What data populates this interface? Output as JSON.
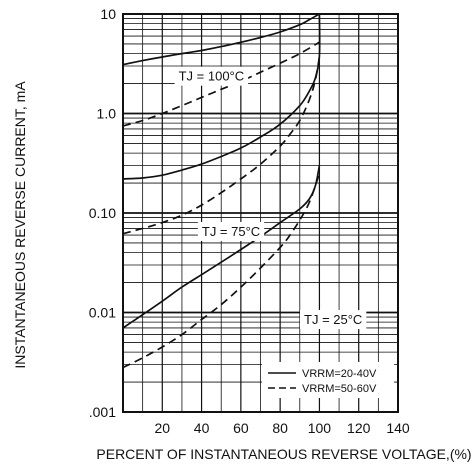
{
  "chart_data": {
    "type": "line",
    "xlabel": "PERCENT OF INSTANTANEOUS REVERSE VOLTAGE,(%)",
    "ylabel": "INSTANTANEOUS REVERSE CURRENT, mA",
    "xlim": [
      0,
      140
    ],
    "ylim": [
      0.001,
      10
    ],
    "yscale": "log",
    "grid": true,
    "x_ticks": [
      "20",
      "40",
      "60",
      "80",
      "100",
      "120",
      "140"
    ],
    "y_ticks": [
      "10",
      "1.0",
      "0.10",
      "0.01",
      ".001"
    ],
    "y_tick_values": [
      10,
      1,
      0.1,
      0.01,
      0.001
    ],
    "legend_position": "bottom-right",
    "legend": [
      {
        "label": "VRRM=20-40V",
        "style": "solid"
      },
      {
        "label": "VRRM=50-60V",
        "style": "dashed"
      }
    ],
    "annotations": [
      {
        "text": "TJ = 100°C",
        "x": 45,
        "y": 2.4
      },
      {
        "text": "TJ = 75°C",
        "x": 55,
        "y": 0.066
      },
      {
        "text": "TJ = 25°C",
        "x": 107,
        "y": 0.0086
      }
    ],
    "series": [
      {
        "style": "solid",
        "group": "TJ = 100°C",
        "x": [
          0,
          10,
          20,
          30,
          40,
          50,
          60,
          70,
          80,
          90,
          95,
          100
        ],
        "y": [
          3.1,
          3.4,
          3.7,
          4.0,
          4.3,
          4.7,
          5.2,
          5.8,
          6.6,
          7.8,
          8.8,
          10
        ]
      },
      {
        "style": "dashed",
        "group": "TJ = 100°C",
        "x": [
          0,
          10,
          20,
          30,
          40,
          50,
          60,
          70,
          80,
          90,
          100
        ],
        "y": [
          0.75,
          0.85,
          1.0,
          1.2,
          1.45,
          1.75,
          2.1,
          2.6,
          3.2,
          4.0,
          5.2
        ]
      },
      {
        "style": "solid",
        "group": "TJ = 75°C",
        "x": [
          0,
          10,
          20,
          30,
          40,
          50,
          60,
          70,
          80,
          90,
          95,
          98,
          100,
          100
        ],
        "y": [
          0.22,
          0.225,
          0.24,
          0.27,
          0.31,
          0.37,
          0.45,
          0.58,
          0.78,
          1.2,
          1.7,
          2.3,
          3.8,
          10
        ]
      },
      {
        "style": "dashed",
        "group": "TJ = 75°C",
        "x": [
          0,
          10,
          20,
          30,
          40,
          50,
          60,
          70,
          80,
          85,
          90,
          95,
          98,
          100
        ],
        "y": [
          0.062,
          0.07,
          0.08,
          0.095,
          0.12,
          0.16,
          0.22,
          0.31,
          0.47,
          0.62,
          0.85,
          1.4,
          2.2,
          3.7
        ]
      },
      {
        "style": "solid",
        "group": "TJ = 25°C",
        "x": [
          0,
          10,
          20,
          30,
          40,
          50,
          60,
          70,
          80,
          90,
          95,
          98,
          100
        ],
        "y": [
          0.007,
          0.0095,
          0.013,
          0.018,
          0.024,
          0.032,
          0.043,
          0.058,
          0.08,
          0.11,
          0.14,
          0.19,
          0.3
        ]
      },
      {
        "style": "dashed",
        "group": "TJ = 25°C",
        "x": [
          0,
          10,
          20,
          30,
          40,
          50,
          60,
          70,
          80,
          85,
          90,
          95,
          100
        ],
        "y": [
          0.0028,
          0.0035,
          0.0045,
          0.006,
          0.0085,
          0.012,
          0.018,
          0.028,
          0.045,
          0.06,
          0.085,
          0.13,
          0.25
        ]
      }
    ]
  }
}
